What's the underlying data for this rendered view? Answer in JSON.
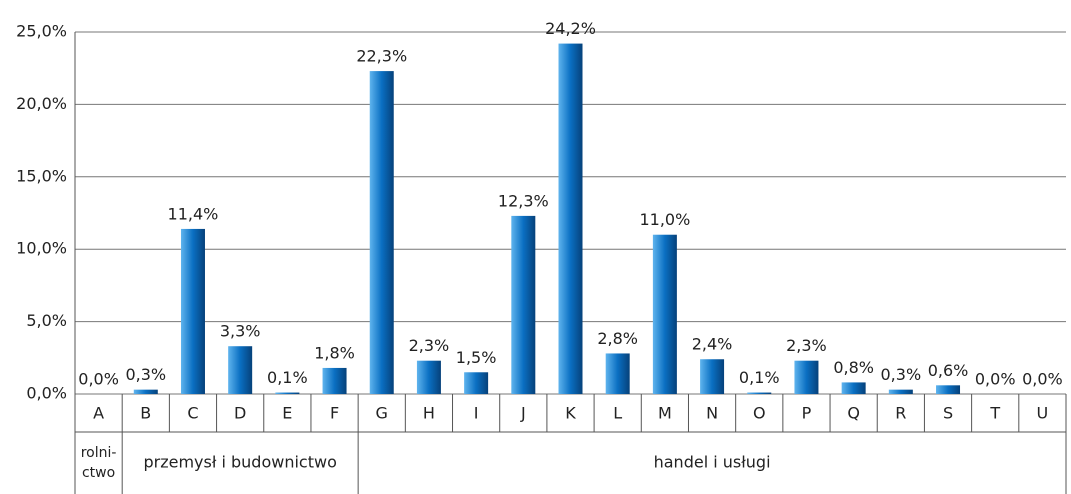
{
  "chart_data": {
    "type": "bar",
    "categories": [
      "A",
      "B",
      "C",
      "D",
      "E",
      "F",
      "G",
      "H",
      "I",
      "J",
      "K",
      "L",
      "M",
      "N",
      "O",
      "P",
      "Q",
      "R",
      "S",
      "T",
      "U"
    ],
    "values": [
      0.0,
      0.3,
      11.4,
      3.3,
      0.1,
      1.8,
      22.3,
      2.3,
      1.5,
      12.3,
      24.2,
      2.8,
      11.0,
      2.4,
      0.1,
      2.3,
      0.8,
      0.3,
      0.6,
      0.0,
      0.0
    ],
    "value_labels": [
      "0,0%",
      "0,3%",
      "11,4%",
      "3,3%",
      "0,1%",
      "1,8%",
      "22,3%",
      "2,3%",
      "1,5%",
      "12,3%",
      "24,2%",
      "2,8%",
      "11,0%",
      "2,4%",
      "0,1%",
      "2,3%",
      "0,8%",
      "0,3%",
      "0,6%",
      "0,0%",
      "0,0%"
    ],
    "color": "#0a6fc2",
    "ylim": [
      0,
      25
    ],
    "yticks": [
      {
        "value": 0,
        "label": "0,0%"
      },
      {
        "value": 5,
        "label": "5,0%"
      },
      {
        "value": 10,
        "label": "10,0%"
      },
      {
        "value": 15,
        "label": "15,0%"
      },
      {
        "value": 20,
        "label": "20,0%"
      },
      {
        "value": 25,
        "label": "25,0%"
      }
    ],
    "grid": true,
    "groups": [
      {
        "label": [
          "rolni-",
          "ctwo"
        ],
        "from": "A",
        "to": "A"
      },
      {
        "label": [
          "przemysł i budownictwo"
        ],
        "from": "B",
        "to": "F"
      },
      {
        "label": [
          "handel i usługi"
        ],
        "from": "G",
        "to": "U"
      }
    ]
  }
}
